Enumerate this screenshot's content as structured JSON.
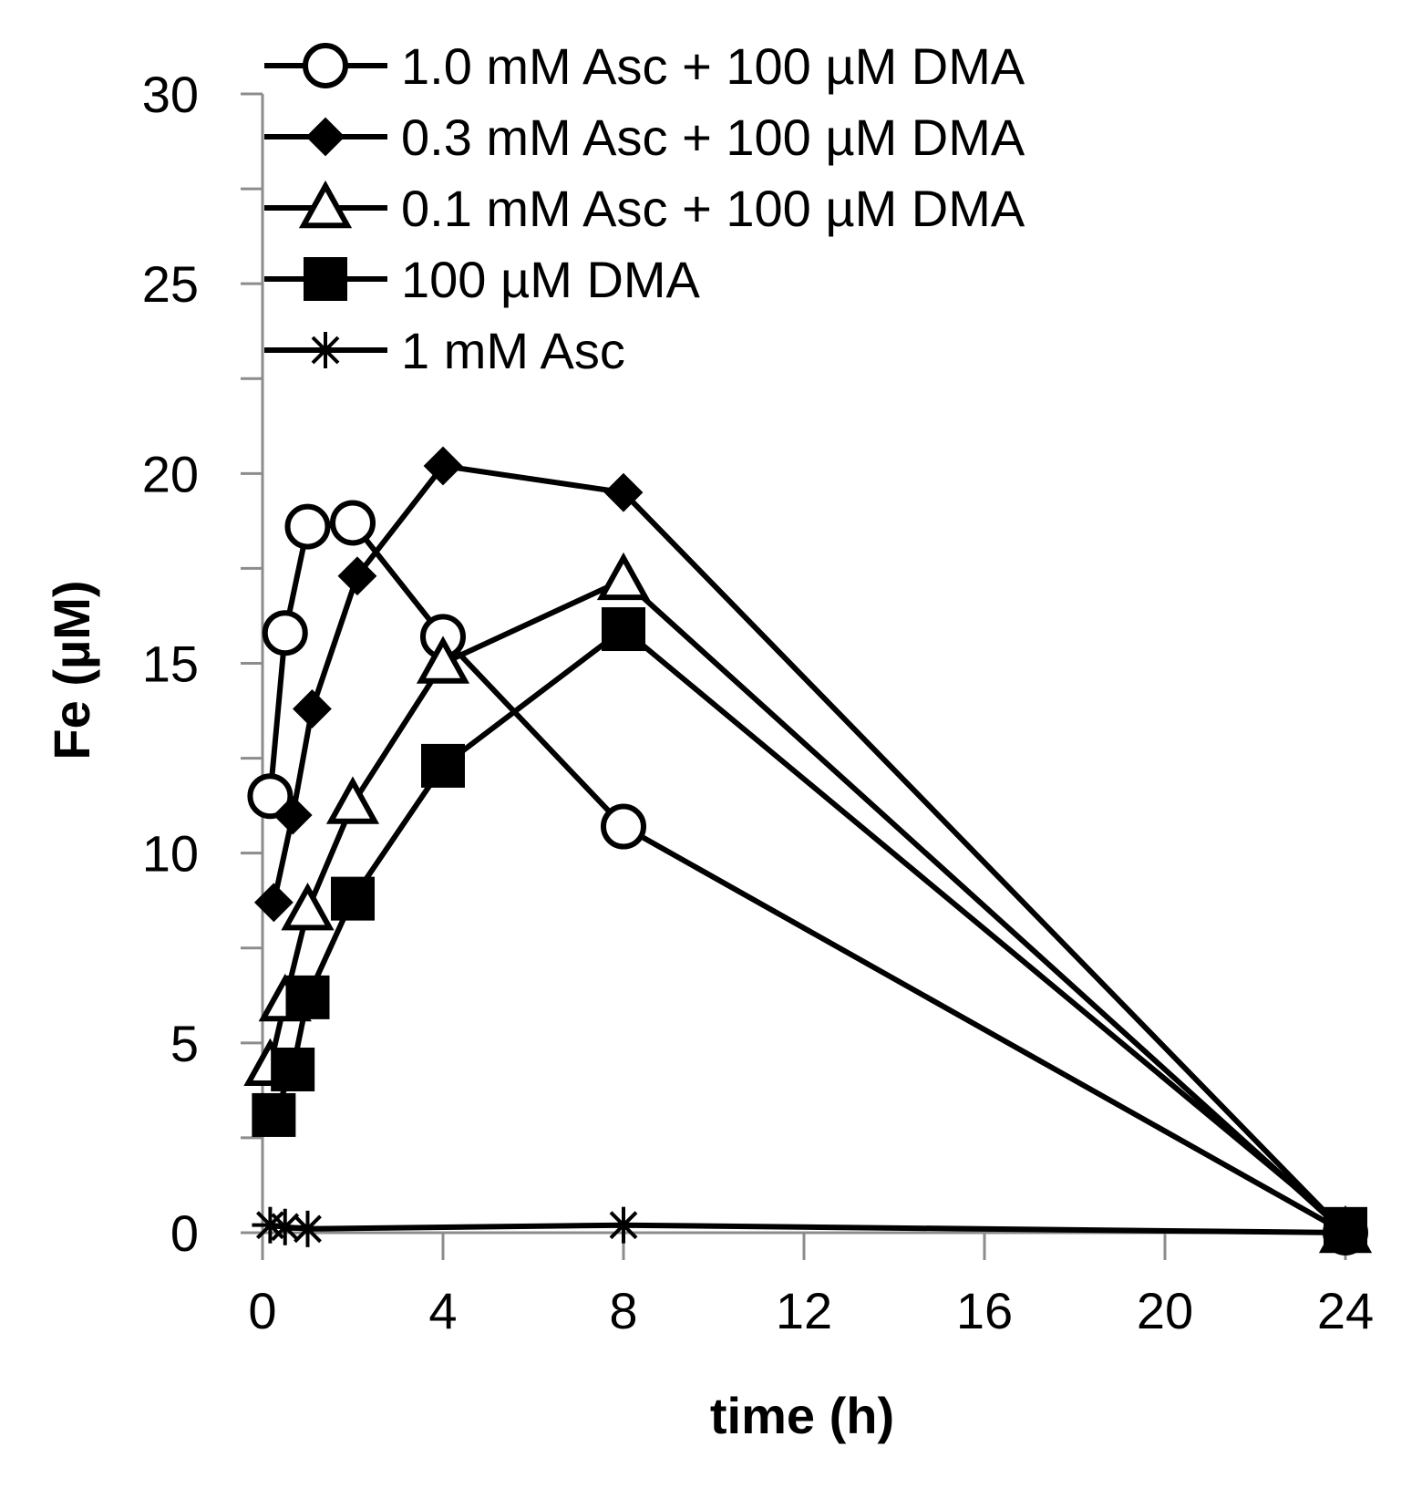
{
  "chart_data": {
    "type": "line",
    "xlabel": "time (h)",
    "ylabel": "Fe (µM)",
    "xlim": [
      0,
      24
    ],
    "ylim": [
      0,
      30
    ],
    "xticks": [
      0,
      4,
      8,
      12,
      16,
      20,
      24
    ],
    "xtick_labels": [
      "0",
      "4",
      "8",
      "12",
      "16",
      "20",
      "24"
    ],
    "yticks": [
      0,
      5,
      10,
      15,
      20,
      25,
      30
    ],
    "ytick_labels": [
      "0",
      "5",
      "10",
      "15",
      "20",
      "25",
      "30"
    ],
    "grid": false,
    "legend_position": "top-left",
    "series": [
      {
        "name": "1.0 mM Asc + 100 µM DMA",
        "marker": "open-circle",
        "x": [
          0.17,
          0.5,
          1,
          2,
          4,
          8,
          24
        ],
        "y": [
          11.5,
          15.8,
          18.6,
          18.7,
          15.7,
          10.7,
          0
        ]
      },
      {
        "name": "0.3 mM Asc + 100 µM DMA",
        "marker": "filled-diamond",
        "x": [
          0.25,
          0.67,
          1.1,
          2.1,
          4.0,
          8.0,
          24
        ],
        "y": [
          8.7,
          11.0,
          13.8,
          17.3,
          20.2,
          19.5,
          0
        ]
      },
      {
        "name": "0.1 mM Asc + 100 µM DMA",
        "marker": "open-triangle",
        "x": [
          0.17,
          0.5,
          1,
          2,
          4,
          8,
          24
        ],
        "y": [
          4.4,
          6.1,
          8.5,
          11.3,
          15.0,
          17.2,
          0
        ]
      },
      {
        "name": "100 µM DMA",
        "marker": "filled-square",
        "x": [
          0.25,
          0.67,
          1,
          2,
          4,
          8,
          24
        ],
        "y": [
          3.1,
          4.3,
          6.2,
          8.8,
          12.3,
          15.9,
          0.1
        ]
      },
      {
        "name": "1 mM Asc",
        "marker": "asterisk",
        "x": [
          0.17,
          0.5,
          1,
          8,
          24
        ],
        "y": [
          0.2,
          0.15,
          0.1,
          0.2,
          0
        ]
      }
    ]
  }
}
